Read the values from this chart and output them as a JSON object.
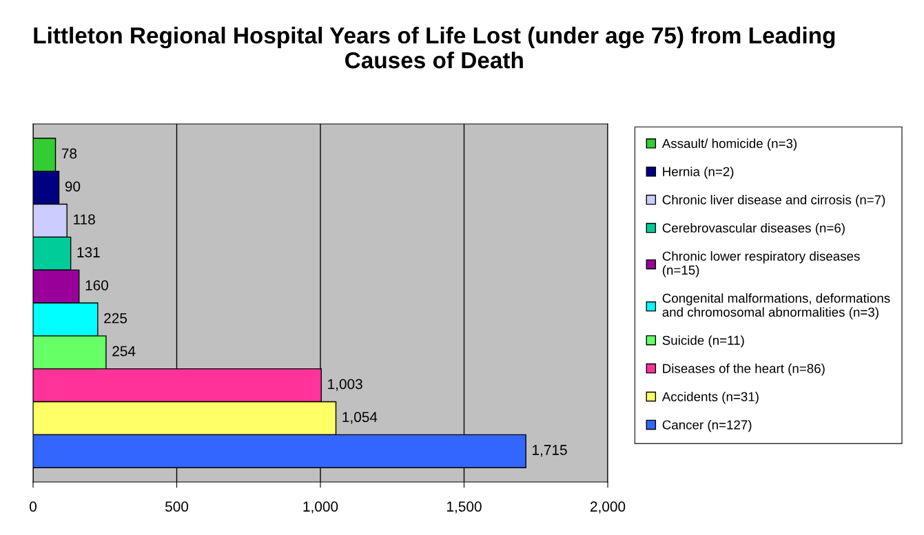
{
  "chart_data": {
    "type": "bar",
    "orientation": "horizontal",
    "title": "Littleton Regional Hospital Years of Life Lost (under age 75) from Leading Causes of Death",
    "categories": [
      null
    ],
    "series": [
      {
        "name": "Assault/ homicide (n=3)",
        "color": "#33cc33",
        "values": [
          78
        ],
        "value_labels": [
          "78"
        ]
      },
      {
        "name": "Hernia (n=2)",
        "color": "#000080",
        "values": [
          90
        ],
        "value_labels": [
          "90"
        ]
      },
      {
        "name": "Chronic liver disease and cirrosis (n=7)",
        "color": "#ccccff",
        "values": [
          118
        ],
        "value_labels": [
          "118"
        ]
      },
      {
        "name": "Cerebrovascular diseases (n=6)",
        "color": "#00cc99",
        "values": [
          131
        ],
        "value_labels": [
          "131"
        ]
      },
      {
        "name": "Chronic lower respiratory diseases\n(n=15)",
        "color": "#990099",
        "values": [
          160
        ],
        "value_labels": [
          "160"
        ]
      },
      {
        "name": "Congenital malformations, deformations\nand chromosomal abnormalities (n=3)",
        "color": "#00ffff",
        "values": [
          225
        ],
        "value_labels": [
          "225"
        ]
      },
      {
        "name": "Suicide (n=11)",
        "color": "#66ff66",
        "values": [
          254
        ],
        "value_labels": [
          "254"
        ]
      },
      {
        "name": "Diseases of the heart (n=86)",
        "color": "#ff3399",
        "values": [
          1003
        ],
        "value_labels": [
          "1,003"
        ]
      },
      {
        "name": "Accidents (n=31)",
        "color": "#ffff66",
        "values": [
          1054
        ],
        "value_labels": [
          "1,054"
        ]
      },
      {
        "name": "Cancer (n=127)",
        "color": "#3366ff",
        "values": [
          1715
        ],
        "value_labels": [
          "1,715"
        ]
      }
    ],
    "xlim": [
      0,
      2000
    ],
    "xticks": [
      0,
      500,
      {
        "value": 1000,
        "label": "1,000"
      },
      {
        "value": 1500,
        "label": "1,500"
      },
      {
        "value": 2000,
        "label": "2,000"
      }
    ],
    "grid": "x",
    "legend": "right",
    "tick_labels": "x"
  }
}
